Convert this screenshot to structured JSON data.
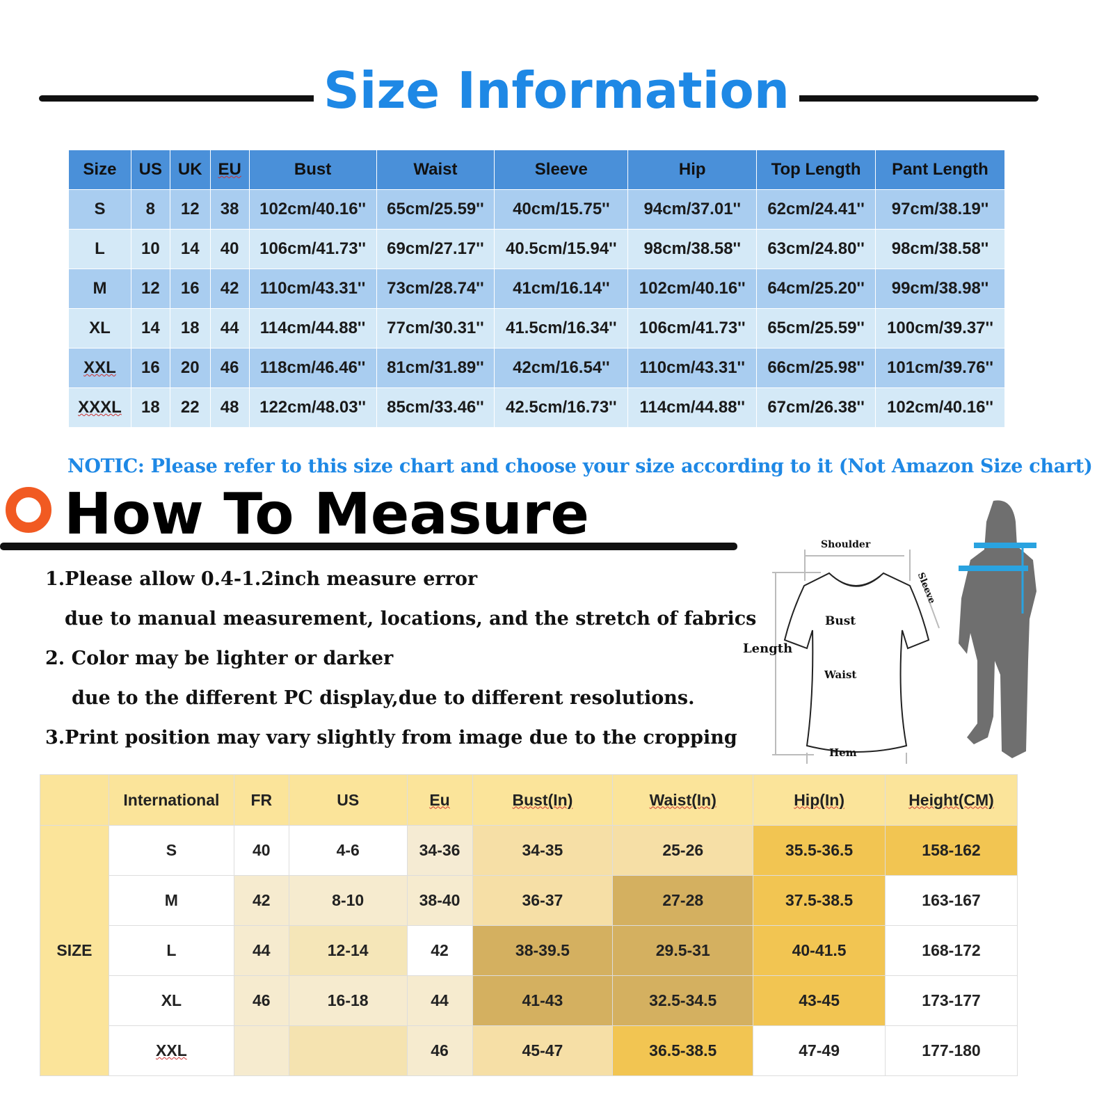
{
  "title": "Size Information",
  "top_table": {
    "headers": [
      "Size",
      "US",
      "UK",
      "EU",
      "Bust",
      "Waist",
      "Sleeve",
      "Hip",
      "Top Length",
      "Pant Length"
    ],
    "rows": [
      [
        "S",
        "8",
        "12",
        "38",
        "102cm/40.16''",
        "65cm/25.59''",
        "40cm/15.75''",
        "94cm/37.01''",
        "62cm/24.41''",
        "97cm/38.19''"
      ],
      [
        "L",
        "10",
        "14",
        "40",
        "106cm/41.73''",
        "69cm/27.17''",
        "40.5cm/15.94''",
        "98cm/38.58''",
        "63cm/24.80''",
        "98cm/38.58''"
      ],
      [
        "M",
        "12",
        "16",
        "42",
        "110cm/43.31''",
        "73cm/28.74''",
        "41cm/16.14''",
        "102cm/40.16''",
        "64cm/25.20''",
        "99cm/38.98''"
      ],
      [
        "XL",
        "14",
        "18",
        "44",
        "114cm/44.88''",
        "77cm/30.31''",
        "41.5cm/16.34''",
        "106cm/41.73''",
        "65cm/25.59''",
        "100cm/39.37''"
      ],
      [
        "XXL",
        "16",
        "20",
        "46",
        "118cm/46.46''",
        "81cm/31.89''",
        "42cm/16.54''",
        "110cm/43.31''",
        "66cm/25.98''",
        "101cm/39.76''"
      ],
      [
        "XXXL",
        "18",
        "22",
        "48",
        "122cm/48.03''",
        "85cm/33.46''",
        "42.5cm/16.73''",
        "114cm/44.88''",
        "67cm/26.38''",
        "102cm/40.16''"
      ]
    ]
  },
  "notice": "NOTIC: Please refer to this size chart and choose your size according to it (Not Amazon Size chart)",
  "how_to": "How To Measure",
  "notes": [
    "1.Please allow 0.4-1.2inch measure error",
    "due to manual measurement, locations, and the stretch of fabrics",
    "2. Color may be lighter or darker",
    "due to the different PC display,due to different resolutions.",
    "3.Print position may vary slightly from image due to the cropping"
  ],
  "diagram": {
    "shoulder": "Shoulder",
    "sleeve": "Sleeve",
    "bust": "Bust",
    "length": "Length",
    "waist": "Waist",
    "hem": "Hem"
  },
  "bottom_table": {
    "row_label": "SIZE",
    "headers": [
      "International",
      "FR",
      "US",
      "Eu",
      "Bust(In)",
      "Waist(In)",
      "Hip(In)",
      "Height(CM)"
    ],
    "rows": [
      [
        "S",
        "40",
        "4-6",
        "34-36",
        "34-35",
        "25-26",
        "35.5-36.5",
        "158-162"
      ],
      [
        "M",
        "42",
        "8-10",
        "38-40",
        "36-37",
        "27-28",
        "37.5-38.5",
        "163-167"
      ],
      [
        "L",
        "44",
        "12-14",
        "42",
        "38-39.5",
        "29.5-31",
        "40-41.5",
        "168-172"
      ],
      [
        "XL",
        "46",
        "16-18",
        "44",
        "41-43",
        "32.5-34.5",
        "43-45",
        "173-177"
      ],
      [
        "XXL",
        "",
        "",
        "46",
        "45-47",
        "36.5-38.5",
        "47-49",
        "177-180"
      ]
    ],
    "cell_colors": [
      [
        "#ffffff",
        "#ffffff",
        "#ffffff",
        "#f5ebd3",
        "#f6dfa6",
        "#f6dfa6",
        "#f2c552",
        "#f2c552"
      ],
      [
        "#ffffff",
        "#f6ebcf",
        "#f6ebcf",
        "#f6ebcf",
        "#f6dfa6",
        "#d4b060",
        "#f2c552",
        "#ffffff"
      ],
      [
        "#ffffff",
        "#f6ebcf",
        "#f5e6b8",
        "#ffffff",
        "#d4b060",
        "#d4b060",
        "#f2c552",
        "#ffffff"
      ],
      [
        "#ffffff",
        "#f6ebcf",
        "#f6ebcf",
        "#f6ebcf",
        "#d4b060",
        "#d4b060",
        "#f2c552",
        "#ffffff"
      ],
      [
        "#ffffff",
        "#f6ebcf",
        "#f5e3b0",
        "#f6ebcf",
        "#f6dfa6",
        "#f2c552",
        "#ffffff",
        "#ffffff"
      ]
    ]
  },
  "colors": {
    "title": "#1e88e5",
    "top_header": "#4a90d9",
    "accent_ring": "#f15a22",
    "bottom_header": "#fbe49a"
  }
}
